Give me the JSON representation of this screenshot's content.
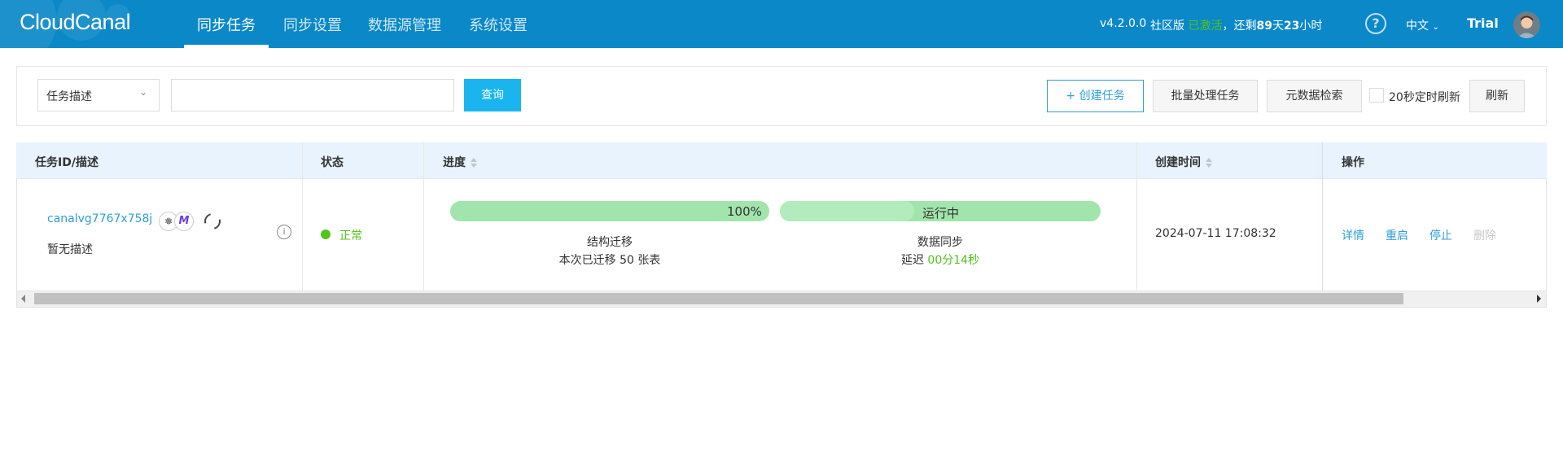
{
  "header": {
    "logo": "CloudCanal",
    "nav": [
      {
        "label": "同步任务",
        "active": true
      },
      {
        "label": "同步设置",
        "active": false
      },
      {
        "label": "数据源管理",
        "active": false
      },
      {
        "label": "系统设置",
        "active": false
      }
    ],
    "version": "v4.2.0.0",
    "edition": "社区版",
    "activated": "已激活",
    "remaining_prefix": "，还剩",
    "remaining_days": "89",
    "days_unit": "天",
    "remaining_hours": "23",
    "hours_unit": "小时",
    "help_icon": "question-circle-icon",
    "language": "中文",
    "user": "Trial",
    "accent_green": "#52c41a",
    "bg_color": "#0a88c8"
  },
  "toolbar": {
    "filter_select": "任务描述",
    "search_value": "",
    "query_label": "查询",
    "create_label": "+ 创建任务",
    "batch_label": "批量处理任务",
    "metadata_label": "元数据检索",
    "auto_refresh_label": "20秒定时刷新",
    "auto_refresh_checked": false,
    "refresh_label": "刷新"
  },
  "table": {
    "columns": [
      "任务ID/描述",
      "状态",
      "进度",
      "创建时间",
      "操作"
    ],
    "rows": [
      {
        "task_id": "canalvg7767x758j",
        "description": "暂无描述",
        "source_icon": "kafka-icon",
        "target_icon": "starrocks-icon",
        "sync_icon": "refresh-cycle-icon",
        "status": "正常",
        "status_color": "#52c41a",
        "schema_progress": {
          "percent": 100,
          "text": "100%",
          "title": "结构迁移",
          "detail": "本次已迁移 50 张表"
        },
        "data_sync": {
          "fill_fraction": 0.42,
          "text": "运行中",
          "title": "数据同步",
          "delay_label": "延迟",
          "delay_value": "00分14秒"
        },
        "created": "2024-07-11 17:08:32",
        "actions": [
          "详情",
          "重启",
          "停止",
          "删除"
        ]
      }
    ]
  }
}
